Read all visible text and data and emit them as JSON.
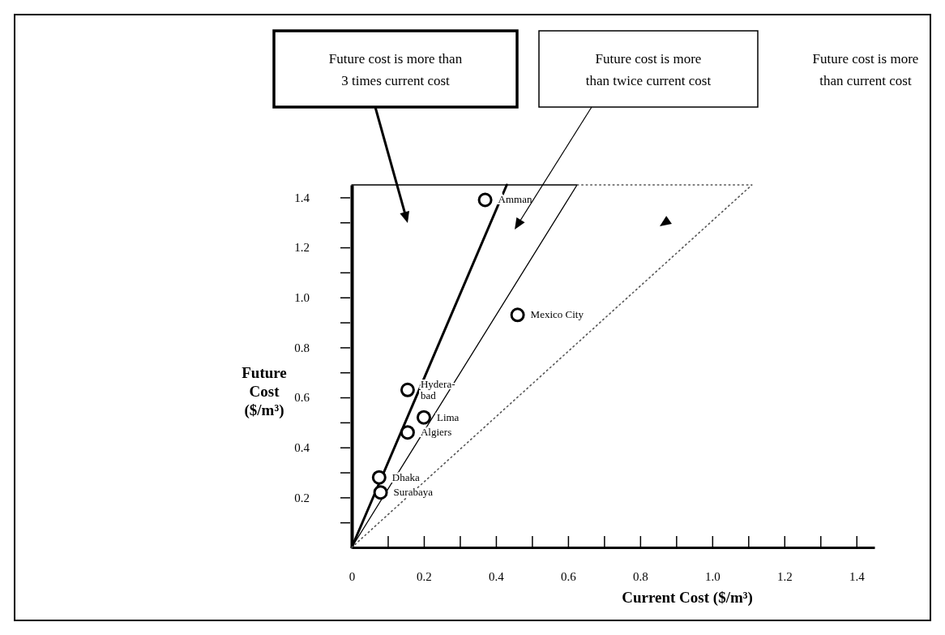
{
  "chart_data": {
    "type": "scatter",
    "xlabel": "Current Cost ($/m³)",
    "ylabel": "Future\nCost\n($/m³)",
    "xlim": [
      0,
      1.45
    ],
    "ylim": [
      0,
      1.45
    ],
    "xticks": [
      0,
      {
        "value": 0.1,
        "label": null
      },
      0.2,
      {
        "value": 0.3,
        "label": null
      },
      0.4,
      {
        "value": 0.5,
        "label": null
      },
      0.6,
      {
        "value": 0.7,
        "label": null
      },
      0.8,
      {
        "value": 0.9,
        "label": null
      },
      {
        "value": 1.0,
        "label": "1.0"
      },
      {
        "value": 1.1,
        "label": null
      },
      1.2,
      {
        "value": 1.3,
        "label": null
      },
      1.4
    ],
    "yticks": [
      {
        "value": 0.1,
        "label": null
      },
      0.2,
      {
        "value": 0.3,
        "label": null
      },
      0.4,
      {
        "value": 0.5,
        "label": null
      },
      0.6,
      {
        "value": 0.7,
        "label": null
      },
      0.8,
      {
        "value": 0.9,
        "label": null
      },
      {
        "value": 1.0,
        "label": "1.0"
      },
      {
        "value": 1.1,
        "label": null
      },
      1.2,
      {
        "value": 1.3,
        "label": null
      },
      1.4
    ],
    "grid": false,
    "series": [
      {
        "color": "#000000",
        "marker": "circle",
        "x": [
          0.37,
          0.46,
          0.155,
          0.2,
          0.155,
          0.076,
          0.08
        ],
        "values": [
          1.39,
          0.93,
          0.63,
          0.52,
          0.46,
          0.28,
          0.22
        ],
        "value_labels": [
          "Amman",
          "Mexico City",
          "Hydera-\nbad",
          "Lima",
          "Algiers",
          "Dhaka",
          "Surabaya"
        ]
      },
      {
        "type": "line",
        "color": "#000000",
        "line_style": "solid",
        "marker": "none",
        "x": [
          0,
          0.43
        ],
        "values": [
          0,
          1.45
        ]
      },
      {
        "type": "line",
        "color": "#000000",
        "line_style": "solid",
        "marker": "none",
        "x": [
          0,
          0.625,
          0
        ],
        "values": [
          0,
          1.45,
          1.45
        ]
      },
      {
        "type": "line",
        "color": "#555555",
        "line_style": "dotted",
        "marker": "none",
        "x": [
          0,
          1.11,
          0.625
        ],
        "values": [
          0,
          1.45,
          1.45
        ]
      }
    ],
    "annotations": [
      "Future cost is more than\n3 times current cost",
      "Future cost is more\nthan twice current cost",
      "Future cost is more\nthan current cost"
    ]
  }
}
